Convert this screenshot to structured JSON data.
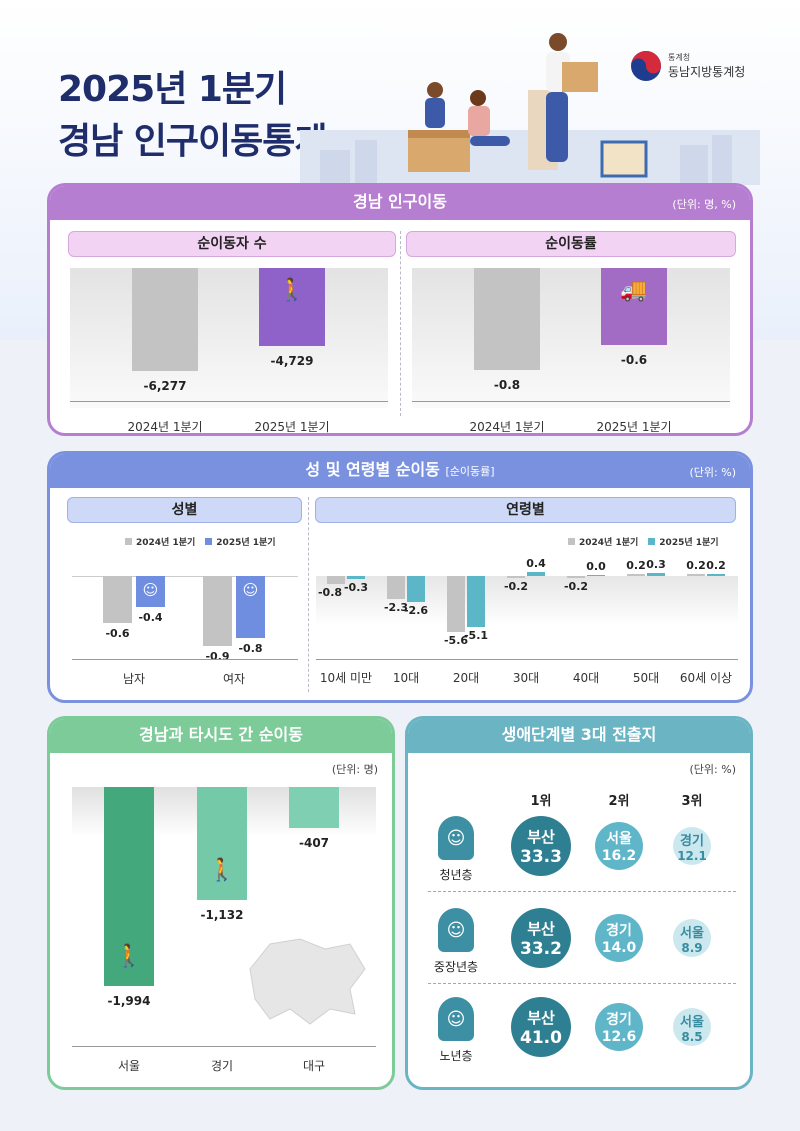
{
  "header": {
    "title_line1": "2025년 1분기",
    "title_line2": "경남 인구이동통계",
    "agency_small": "통계청",
    "agency_name": "동남지방통계청"
  },
  "panel1": {
    "title": "경남 인구이동",
    "unit": "(단위: 명, %)",
    "left_title": "순이동자 수",
    "right_title": "순이동률"
  },
  "panel2": {
    "title": "성 및 연령별 순이동",
    "title_note": "[순이동률]",
    "unit": "(단위: %)",
    "left_title": "성별",
    "right_title": "연령별",
    "legend_2024": "2024년 1분기",
    "legend_2025": "2025년 1분기"
  },
  "panel3": {
    "title": "경남과 타시도 간 순이동",
    "unit": "(단위: 명)"
  },
  "panel4": {
    "title": "생애단계별 3대 전출지",
    "unit": "(단위: %)",
    "rank_labels": [
      "1위",
      "2위",
      "3위"
    ]
  },
  "colors": {
    "purple": "#b57ed0",
    "purple_bar": "#8e62c8",
    "blue": "#7a91e0",
    "blue_bar": "#6f8ee0",
    "green": "#7ccb98",
    "green_dark": "#43a97d",
    "green_mid": "#74c9a8",
    "teal": "#6ab4c4",
    "teal_bar": "#5bb7c8",
    "gray_bar": "#c3c3c3"
  },
  "chart_data": [
    {
      "type": "bar",
      "title": "순이동자 수",
      "categories": [
        "2024년 1분기",
        "2025년 1분기"
      ],
      "values": [
        -6277,
        -4729
      ],
      "value_labels": [
        "-6,277",
        "-4,729"
      ],
      "ylim": [
        -7000,
        0
      ]
    },
    {
      "type": "bar",
      "title": "순이동률",
      "categories": [
        "2024년 1분기",
        "2025년 1분기"
      ],
      "values": [
        -0.8,
        -0.6
      ],
      "value_labels": [
        "-0.8",
        "-0.6"
      ],
      "ylim": [
        -0.9,
        0
      ]
    },
    {
      "type": "bar",
      "title": "성별",
      "categories": [
        "남자",
        "여자"
      ],
      "series": [
        {
          "name": "2024년 1분기",
          "values": [
            -0.6,
            -0.9
          ],
          "labels": [
            "-0.6",
            "-0.9"
          ]
        },
        {
          "name": "2025년 1분기",
          "values": [
            -0.4,
            -0.8
          ],
          "labels": [
            "-0.4",
            "-0.8"
          ]
        }
      ],
      "ylim": [
        -1.0,
        0
      ]
    },
    {
      "type": "bar",
      "title": "연령별",
      "categories": [
        "10세 미만",
        "10대",
        "20대",
        "30대",
        "40대",
        "50대",
        "60세 이상"
      ],
      "series": [
        {
          "name": "2024년 1분기",
          "values": [
            -0.8,
            -2.3,
            -5.6,
            -0.2,
            -0.2,
            0.2,
            0.2
          ],
          "labels": [
            "-0.8",
            "-2.3",
            "-5.6",
            "-0.2",
            "-0.2",
            "0.2",
            "0.2"
          ]
        },
        {
          "name": "2025년 1분기",
          "values": [
            -0.3,
            -2.6,
            -5.1,
            0.4,
            0.0,
            0.3,
            0.2
          ],
          "labels": [
            "-0.3",
            "-2.6",
            "-5.1",
            "0.4",
            "0.0",
            "0.3",
            "0.2"
          ]
        }
      ],
      "ylim": [
        -6.0,
        0.6
      ]
    },
    {
      "type": "bar",
      "title": "경남과 타시도 간 순이동",
      "categories": [
        "서울",
        "경기",
        "대구"
      ],
      "values": [
        -1994,
        -1132,
        -407
      ],
      "value_labels": [
        "-1,994",
        "-1,132",
        "-407"
      ],
      "ylim": [
        -2100,
        0
      ]
    },
    {
      "type": "table",
      "title": "생애단계별 3대 전출지",
      "rows": [
        {
          "group": "청년층",
          "ranks": [
            {
              "place": "부산",
              "value": "33.3"
            },
            {
              "place": "서울",
              "value": "16.2"
            },
            {
              "place": "경기",
              "value": "12.1"
            }
          ]
        },
        {
          "group": "중장년층",
          "ranks": [
            {
              "place": "부산",
              "value": "33.2"
            },
            {
              "place": "경기",
              "value": "14.0"
            },
            {
              "place": "서울",
              "value": "8.9"
            }
          ]
        },
        {
          "group": "노년층",
          "ranks": [
            {
              "place": "부산",
              "value": "41.0"
            },
            {
              "place": "경기",
              "value": "12.6"
            },
            {
              "place": "서울",
              "value": "8.5"
            }
          ]
        }
      ]
    }
  ]
}
